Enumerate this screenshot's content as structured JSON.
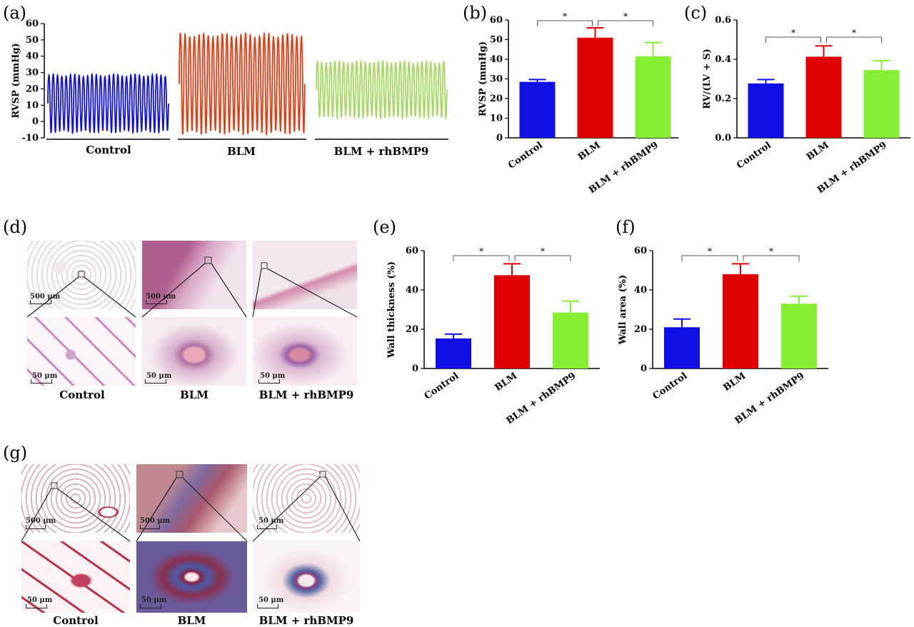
{
  "panels": {
    "a": "(a)",
    "b": "(b)",
    "c": "(c)",
    "d": "(d)",
    "e": "(e)",
    "f": "(f)",
    "g": "(g)"
  },
  "groups": [
    "Control",
    "BLM",
    "BLM + rhBMP9"
  ],
  "colors": {
    "control": "#1010e6",
    "blm": "#e00000",
    "rh": "#88ee33",
    "trace_blm": "#e83a10",
    "trace_rh": "#a6d962"
  },
  "chart_data": [
    {
      "id": "a",
      "type": "line",
      "title": "",
      "ylabel": "RVSP (mmHg)",
      "ylim": [
        -10,
        60
      ],
      "yticks": [
        -10,
        0,
        10,
        20,
        30,
        40,
        50,
        60
      ],
      "series": [
        {
          "name": "Control",
          "min": -7,
          "max": 29,
          "cycles": 28
        },
        {
          "name": "BLM",
          "min": -8,
          "max": 54,
          "cycles": 27
        },
        {
          "name": "BLM + rhBMP9",
          "min": 2,
          "max": 37,
          "cycles": 30
        }
      ]
    },
    {
      "id": "b",
      "type": "bar",
      "ylabel": "RVSP (mmHg)",
      "ylim": [
        0,
        60
      ],
      "yticks": [
        "0",
        "10",
        "20",
        "30",
        "40",
        "50",
        "60"
      ],
      "categories": [
        "Control",
        "BLM",
        "BLM + rhBMP9"
      ],
      "values": [
        28.5,
        51,
        41.5
      ],
      "errors": [
        1.2,
        5,
        7
      ],
      "significance": [
        {
          "from": 0,
          "to": 1,
          "label": "*"
        },
        {
          "from": 1,
          "to": 2,
          "label": "*"
        }
      ]
    },
    {
      "id": "c",
      "type": "bar",
      "ylabel": "RV/(LV + S)",
      "ylim": [
        0,
        0.6
      ],
      "yticks": [
        "0.0",
        "0.2",
        "0.4",
        "0.6"
      ],
      "categories": [
        "Control",
        "BLM",
        "BLM + rhBMP9"
      ],
      "values": [
        0.277,
        0.413,
        0.345
      ],
      "errors": [
        0.02,
        0.055,
        0.048
      ],
      "significance": [
        {
          "from": 0,
          "to": 1,
          "label": "*"
        },
        {
          "from": 1,
          "to": 2,
          "label": "*"
        }
      ]
    },
    {
      "id": "e",
      "type": "bar",
      "ylabel": "Wall thickness (%)",
      "ylim": [
        0,
        60
      ],
      "yticks": [
        "0",
        "20",
        "40",
        "60"
      ],
      "categories": [
        "Control",
        "BLM",
        "BLM + rhBMP9"
      ],
      "values": [
        15.3,
        47.5,
        28.5
      ],
      "errors": [
        2.2,
        5.8,
        5.8
      ],
      "significance": [
        {
          "from": 0,
          "to": 1,
          "label": "*"
        },
        {
          "from": 1,
          "to": 2,
          "label": "*"
        }
      ]
    },
    {
      "id": "f",
      "type": "bar",
      "ylabel": "Wall area (%)",
      "ylim": [
        0,
        60
      ],
      "yticks": [
        "0",
        "20",
        "40",
        "60"
      ],
      "categories": [
        "Control",
        "BLM",
        "BLM + rhBMP9"
      ],
      "values": [
        21,
        48,
        33
      ],
      "errors": [
        4.2,
        5.3,
        3.8
      ],
      "significance": [
        {
          "from": 0,
          "to": 1,
          "label": "*"
        },
        {
          "from": 1,
          "to": 2,
          "label": "*"
        }
      ]
    }
  ],
  "histology": {
    "d": {
      "scale_top": [
        "500 μm",
        "500 μm",
        ""
      ],
      "scale_bottom": [
        "50 μm",
        "50 μm",
        "50 μm"
      ]
    },
    "g": {
      "scale_top": [
        "500 μm",
        "500 μm",
        "50 μm"
      ],
      "scale_bottom": [
        "50 μm",
        "50 μm",
        "50 μm"
      ]
    }
  }
}
